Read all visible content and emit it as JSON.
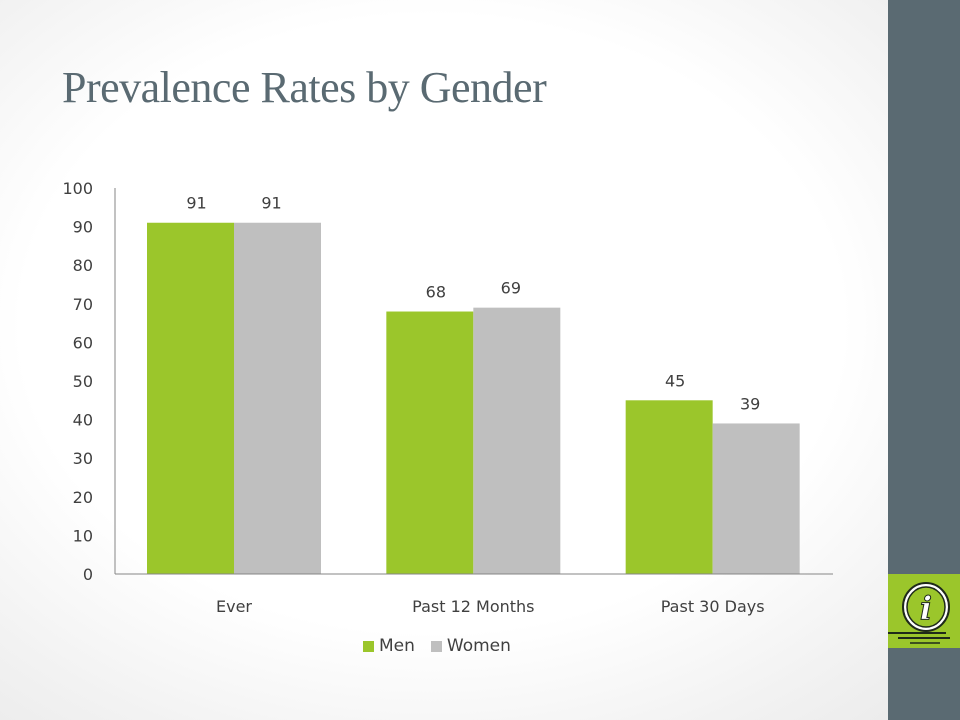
{
  "slide": {
    "title": "Prevalence Rates by Gender"
  },
  "colors": {
    "men": "#9bc62b",
    "women": "#bfbfbf",
    "band": "#5a6a72",
    "title": "#5a6a72"
  },
  "badge": {
    "icon": "info-icon"
  },
  "chart_data": {
    "type": "bar",
    "categories": [
      "Ever",
      "Past 12 Months",
      "Past 30 Days"
    ],
    "series": [
      {
        "name": "Men",
        "values": [
          91,
          68,
          45
        ]
      },
      {
        "name": "Women",
        "values": [
          91,
          69,
          39
        ]
      }
    ],
    "ylim": [
      0,
      100
    ],
    "yticks": [
      "0",
      "10",
      "20",
      "30",
      "40",
      "50",
      "60",
      "70",
      "80",
      "90",
      "100"
    ],
    "data_labels": true,
    "grid": false,
    "legend": "bottom"
  }
}
